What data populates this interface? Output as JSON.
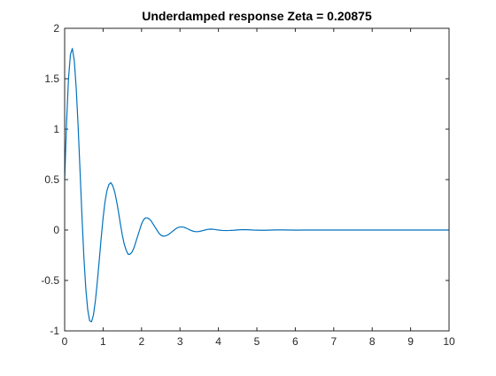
{
  "chart_data": {
    "type": "line",
    "title": "Underdamped response Zeta = 0.20875",
    "xlabel": "",
    "ylabel": "",
    "xlim": [
      0,
      10
    ],
    "ylim": [
      -1,
      2
    ],
    "xticks": [
      0,
      1,
      2,
      3,
      4,
      5,
      6,
      7,
      8,
      9,
      10
    ],
    "xtick_labels": [
      "0",
      "1",
      "2",
      "3",
      "4",
      "5",
      "6",
      "7",
      "8",
      "9",
      "10"
    ],
    "yticks": [
      -1,
      -0.5,
      0,
      0.5,
      1,
      1.5,
      2
    ],
    "ytick_labels": [
      "-1",
      "-0.5",
      "0",
      "0.5",
      "1",
      "1.5",
      "2"
    ],
    "grid": false,
    "line_color": "#0072BD",
    "series": [
      {
        "x": [
          0,
          0.05,
          0.1,
          0.15,
          0.2,
          0.25,
          0.3,
          0.35,
          0.4,
          0.45,
          0.5,
          0.55,
          0.6,
          0.65,
          0.7,
          0.75,
          0.8,
          0.85,
          0.9,
          0.95,
          1.0,
          1.05,
          1.1,
          1.15,
          1.2,
          1.25,
          1.3,
          1.35,
          1.4,
          1.45,
          1.5,
          1.55,
          1.6,
          1.65,
          1.7,
          1.75,
          1.8,
          1.85,
          1.9,
          1.95,
          2.0,
          2.05,
          2.1,
          2.15,
          2.2,
          2.25,
          2.3,
          2.35,
          2.4,
          2.45,
          2.5,
          2.55,
          2.6,
          2.65,
          2.7,
          2.75,
          2.8,
          2.85,
          2.9,
          2.95,
          3.0,
          3.05,
          3.1,
          3.15,
          3.2,
          3.25,
          3.3,
          3.35,
          3.4,
          3.45,
          3.5,
          3.55,
          3.6,
          3.65,
          3.7,
          3.75,
          3.8,
          3.85,
          3.9,
          3.95,
          4.0,
          4.1,
          4.2,
          4.3,
          4.4,
          4.5,
          4.6,
          4.7,
          4.8,
          4.9,
          5.0,
          5.1,
          5.2,
          5.3,
          5.4,
          5.5,
          5.6,
          5.7,
          5.8,
          5.9,
          6.0,
          6.25,
          6.5,
          6.75,
          7.0,
          7.5,
          8.0,
          8.5,
          9.0,
          9.5,
          10.0
        ],
        "y": [
          0.5,
          1.07,
          1.5,
          1.74,
          1.8,
          1.68,
          1.41,
          1.03,
          0.59,
          0.14,
          -0.27,
          -0.58,
          -0.79,
          -0.9,
          -0.91,
          -0.84,
          -0.7,
          -0.51,
          -0.3,
          -0.08,
          0.12,
          0.28,
          0.39,
          0.45,
          0.47,
          0.44,
          0.38,
          0.29,
          0.18,
          0.06,
          -0.05,
          -0.14,
          -0.2,
          -0.24,
          -0.24,
          -0.22,
          -0.18,
          -0.12,
          -0.06,
          0.0,
          0.06,
          0.1,
          0.12,
          0.12,
          0.11,
          0.09,
          0.06,
          0.03,
          0.0,
          -0.03,
          -0.05,
          -0.06,
          -0.06,
          -0.055,
          -0.045,
          -0.03,
          -0.015,
          0.0,
          0.015,
          0.025,
          0.03,
          0.03,
          0.028,
          0.02,
          0.012,
          0.003,
          -0.006,
          -0.012,
          -0.016,
          -0.016,
          -0.014,
          -0.01,
          -0.005,
          0.0,
          0.005,
          0.008,
          0.009,
          0.008,
          0.006,
          0.003,
          0.0,
          -0.004,
          -0.005,
          -0.004,
          -0.002,
          0.001,
          0.003,
          0.003,
          0.002,
          0.0,
          -0.001,
          -0.002,
          -0.002,
          -0.001,
          0.0,
          0.001,
          0.001,
          0.001,
          0.0,
          0.0,
          -0.001,
          0.0,
          0.0,
          0.0,
          0.0,
          0.0,
          0.0,
          0.0,
          0.0,
          0.0,
          0.0
        ]
      }
    ]
  }
}
